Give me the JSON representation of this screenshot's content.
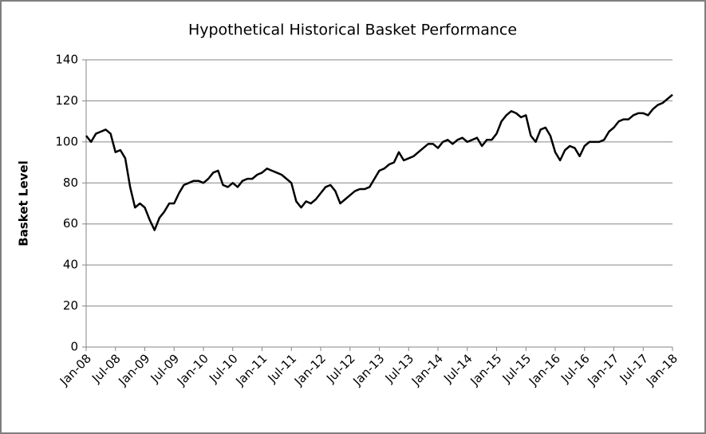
{
  "chart_data": {
    "type": "line",
    "title": "Hypothetical Historical Basket Performance",
    "y_label": "Basket Level",
    "x": [
      "Jan-08",
      "Feb-08",
      "Mar-08",
      "Apr-08",
      "May-08",
      "Jun-08",
      "Jul-08",
      "Aug-08",
      "Sep-08",
      "Oct-08",
      "Nov-08",
      "Dec-08",
      "Jan-09",
      "Feb-09",
      "Mar-09",
      "Apr-09",
      "May-09",
      "Jun-09",
      "Jul-09",
      "Aug-09",
      "Sep-09",
      "Oct-09",
      "Nov-09",
      "Dec-09",
      "Jan-10",
      "Feb-10",
      "Mar-10",
      "Apr-10",
      "May-10",
      "Jun-10",
      "Jul-10",
      "Aug-10",
      "Sep-10",
      "Oct-10",
      "Nov-10",
      "Dec-10",
      "Jan-11",
      "Feb-11",
      "Mar-11",
      "Apr-11",
      "May-11",
      "Jun-11",
      "Jul-11",
      "Aug-11",
      "Sep-11",
      "Oct-11",
      "Nov-11",
      "Dec-11",
      "Jan-12",
      "Feb-12",
      "Mar-12",
      "Apr-12",
      "May-12",
      "Jun-12",
      "Jul-12",
      "Aug-12",
      "Sep-12",
      "Oct-12",
      "Nov-12",
      "Dec-12",
      "Jan-13",
      "Feb-13",
      "Mar-13",
      "Apr-13",
      "May-13",
      "Jun-13",
      "Jul-13",
      "Aug-13",
      "Sep-13",
      "Oct-13",
      "Nov-13",
      "Dec-13",
      "Jan-14",
      "Feb-14",
      "Mar-14",
      "Apr-14",
      "May-14",
      "Jun-14",
      "Jul-14",
      "Aug-14",
      "Sep-14",
      "Oct-14",
      "Nov-14",
      "Dec-14",
      "Jan-15",
      "Feb-15",
      "Mar-15",
      "Apr-15",
      "May-15",
      "Jun-15",
      "Jul-15",
      "Aug-15",
      "Sep-15",
      "Oct-15",
      "Nov-15",
      "Dec-15",
      "Jan-16",
      "Feb-16",
      "Mar-16",
      "Apr-16",
      "May-16",
      "Jun-16",
      "Jul-16",
      "Aug-16",
      "Sep-16",
      "Oct-16",
      "Nov-16",
      "Dec-16",
      "Jan-17",
      "Feb-17",
      "Mar-17",
      "Apr-17",
      "May-17",
      "Jun-17",
      "Jul-17",
      "Aug-17",
      "Sep-17",
      "Oct-17",
      "Nov-17",
      "Dec-17",
      "Jan-18"
    ],
    "values": [
      103,
      100,
      104,
      105,
      106,
      104,
      95,
      96,
      92,
      78,
      68,
      70,
      68,
      62,
      57,
      63,
      66,
      70,
      70,
      75,
      79,
      80,
      81,
      81,
      80,
      82,
      85,
      86,
      79,
      78,
      80,
      78,
      81,
      82,
      82,
      84,
      85,
      87,
      86,
      85,
      84,
      82,
      80,
      71,
      68,
      71,
      70,
      72,
      75,
      78,
      79,
      76,
      70,
      72,
      74,
      76,
      77,
      77,
      78,
      82,
      86,
      87,
      89,
      90,
      95,
      91,
      92,
      93,
      95,
      97,
      99,
      99,
      97,
      100,
      101,
      99,
      101,
      102,
      100,
      101,
      102,
      98,
      101,
      101,
      104,
      110,
      113,
      115,
      114,
      112,
      113,
      103,
      100,
      106,
      107,
      103,
      95,
      91,
      96,
      98,
      97,
      93,
      98,
      100,
      100,
      100,
      101,
      105,
      107,
      110,
      111,
      111,
      113,
      114,
      114,
      113,
      116,
      118,
      119,
      121,
      123
    ],
    "color": "#000000",
    "ylim": [
      0,
      140
    ],
    "yticks": [
      0,
      20,
      40,
      60,
      80,
      100,
      120,
      140
    ],
    "grid": true
  }
}
